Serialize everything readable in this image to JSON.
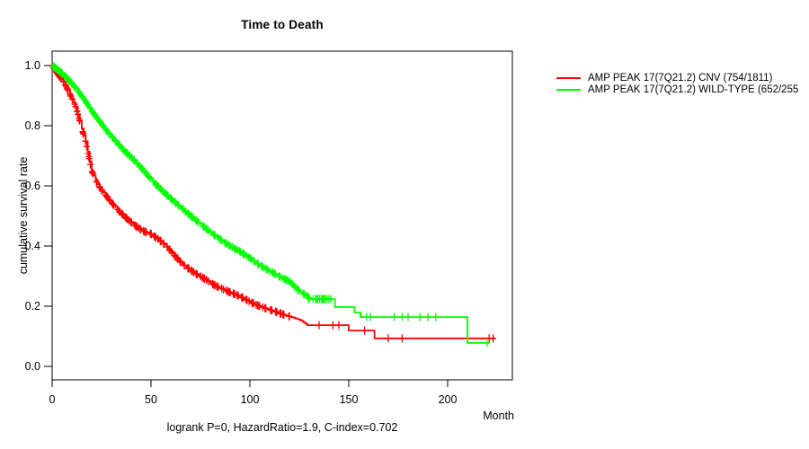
{
  "meta": {
    "background": "#ffffff",
    "frame_color": "#000000",
    "text_color": "#000000"
  },
  "chart_data": {
    "type": "line",
    "curve_style": "kaplan-meier-step",
    "title": "Time to Death",
    "subtitle": "logrank P=0, HazardRatio=1.9, C-index=0.702",
    "xlabel": "Month",
    "ylabel": "cumulative survival rate",
    "xlim": [
      0,
      232
    ],
    "ylim": [
      0.0,
      1.0
    ],
    "xticks": [
      0,
      50,
      100,
      150,
      200
    ],
    "xtick_labels": [
      "0",
      "50",
      "100",
      "150",
      "200"
    ],
    "yticks": [
      0.0,
      0.2,
      0.4,
      0.6,
      0.8,
      1.0
    ],
    "ytick_labels": [
      "0.0",
      "0.2",
      "0.4",
      "0.6",
      "0.8",
      "1.0"
    ],
    "grid": false,
    "legend_position": "top-right-outside",
    "censor_mark_symbol": "plus",
    "series": [
      {
        "name": "AMP PEAK 17(7Q21.2) CNV (754/1811)",
        "color": "#FF0000",
        "smooth_until": 129,
        "end_month": 224,
        "points": [
          [
            0,
            1.0
          ],
          [
            3,
            0.97
          ],
          [
            6,
            0.945
          ],
          [
            9,
            0.905
          ],
          [
            12,
            0.862
          ],
          [
            15,
            0.79
          ],
          [
            17,
            0.745
          ],
          [
            20,
            0.65
          ],
          [
            23,
            0.605
          ],
          [
            26,
            0.578
          ],
          [
            30,
            0.545
          ],
          [
            34,
            0.515
          ],
          [
            38,
            0.49
          ],
          [
            42,
            0.468
          ],
          [
            46,
            0.45
          ],
          [
            50,
            0.44
          ],
          [
            54,
            0.422
          ],
          [
            58,
            0.398
          ],
          [
            62,
            0.368
          ],
          [
            66,
            0.34
          ],
          [
            70,
            0.32
          ],
          [
            74,
            0.303
          ],
          [
            78,
            0.288
          ],
          [
            82,
            0.27
          ],
          [
            86,
            0.258
          ],
          [
            90,
            0.246
          ],
          [
            94,
            0.236
          ],
          [
            98,
            0.222
          ],
          [
            103,
            0.205
          ],
          [
            108,
            0.193
          ],
          [
            113,
            0.182
          ],
          [
            118,
            0.17
          ],
          [
            122,
            0.162
          ],
          [
            126,
            0.152
          ],
          [
            129,
            0.137
          ],
          [
            150,
            0.119
          ],
          [
            163,
            0.093
          ]
        ],
        "censor_marks": [
          [
            135,
            0.137
          ],
          [
            142,
            0.137
          ],
          [
            145,
            0.137
          ],
          [
            158,
            0.119
          ],
          [
            170,
            0.093
          ],
          [
            177,
            0.093
          ],
          [
            221,
            0.093
          ],
          [
            223,
            0.093
          ]
        ],
        "dense_censoring": {
          "start": 0.5,
          "end": 120,
          "count": 185,
          "exponent": 1.35,
          "seed": 7
        }
      },
      {
        "name": "AMP PEAK 17(7Q21.2) WILD-TYPE (652/255",
        "color": "#00FF00",
        "smooth_until": 130,
        "end_month": 221,
        "points": [
          [
            0,
            1.0
          ],
          [
            4,
            0.98
          ],
          [
            8,
            0.955
          ],
          [
            12,
            0.925
          ],
          [
            16,
            0.89
          ],
          [
            20,
            0.85
          ],
          [
            24,
            0.815
          ],
          [
            28,
            0.78
          ],
          [
            32,
            0.75
          ],
          [
            36,
            0.72
          ],
          [
            40,
            0.695
          ],
          [
            44,
            0.668
          ],
          [
            48,
            0.638
          ],
          [
            52,
            0.608
          ],
          [
            56,
            0.582
          ],
          [
            60,
            0.558
          ],
          [
            64,
            0.535
          ],
          [
            68,
            0.512
          ],
          [
            72,
            0.49
          ],
          [
            76,
            0.468
          ],
          [
            80,
            0.447
          ],
          [
            84,
            0.427
          ],
          [
            88,
            0.408
          ],
          [
            92,
            0.393
          ],
          [
            96,
            0.378
          ],
          [
            100,
            0.36
          ],
          [
            104,
            0.341
          ],
          [
            108,
            0.325
          ],
          [
            112,
            0.31
          ],
          [
            116,
            0.295
          ],
          [
            120,
            0.283
          ],
          [
            123,
            0.263
          ],
          [
            126,
            0.245
          ],
          [
            129,
            0.235
          ],
          [
            130,
            0.224
          ],
          [
            143,
            0.197
          ],
          [
            153,
            0.179
          ],
          [
            156,
            0.164
          ],
          [
            210,
            0.078
          ]
        ],
        "censor_marks": [
          [
            134,
            0.224
          ],
          [
            138,
            0.224
          ],
          [
            141,
            0.224
          ],
          [
            159,
            0.164
          ],
          [
            161,
            0.164
          ],
          [
            173,
            0.164
          ],
          [
            177,
            0.164
          ],
          [
            180,
            0.164
          ],
          [
            186,
            0.164
          ],
          [
            190,
            0.164
          ],
          [
            194,
            0.164
          ],
          [
            220,
            0.078
          ]
        ],
        "dense_censoring": {
          "start": 0.5,
          "end": 140,
          "count": 215,
          "exponent": 1.3,
          "seed": 13
        }
      }
    ]
  }
}
